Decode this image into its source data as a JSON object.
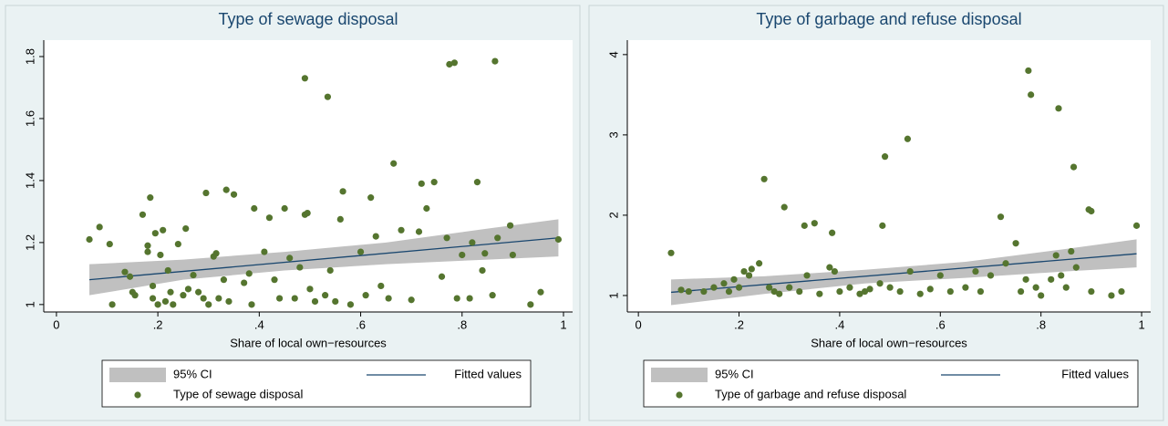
{
  "chart_data": [
    {
      "type": "scatter",
      "title": "Type of sewage disposal",
      "xlabel": "Share of local own−resources",
      "xlim": [
        -0.025,
        1.018
      ],
      "ylim": [
        0.976,
        1.853
      ],
      "xticks": [
        0,
        {
          "value": 0.2,
          "label": ".2"
        },
        {
          "value": 0.4,
          "label": ".4"
        },
        {
          "value": 0.6,
          "label": ".6"
        },
        {
          "value": 0.8,
          "label": ".8"
        },
        1
      ],
      "yticks": [
        1,
        1.2,
        1.4,
        1.6,
        1.8
      ],
      "series": [
        {
          "name": "95% CI",
          "color": "#c0c0c0",
          "x": [
            0.065,
            0.25,
            0.45,
            0.65,
            0.85,
            0.99
          ],
          "lower": [
            1.03,
            1.08,
            1.11,
            1.13,
            1.145,
            1.155
          ],
          "upper": [
            1.13,
            1.145,
            1.17,
            1.2,
            1.245,
            1.275
          ]
        },
        {
          "name": "Fitted values",
          "color": "#1a476f",
          "x": [
            0.065,
            0.99
          ],
          "values": [
            1.08,
            1.215
          ]
        },
        {
          "name": "Type of sewage disposal",
          "color": "#55752f",
          "x": [
            0.065,
            0.085,
            0.105,
            0.11,
            0.135,
            0.145,
            0.15,
            0.155,
            0.17,
            0.18,
            0.18,
            0.185,
            0.19,
            0.19,
            0.195,
            0.2,
            0.205,
            0.21,
            0.215,
            0.22,
            0.225,
            0.23,
            0.24,
            0.25,
            0.255,
            0.26,
            0.27,
            0.28,
            0.29,
            0.295,
            0.3,
            0.31,
            0.315,
            0.32,
            0.33,
            0.335,
            0.34,
            0.35,
            0.37,
            0.38,
            0.385,
            0.39,
            0.41,
            0.42,
            0.43,
            0.44,
            0.45,
            0.46,
            0.47,
            0.48,
            0.49,
            0.49,
            0.495,
            0.5,
            0.51,
            0.53,
            0.535,
            0.54,
            0.55,
            0.56,
            0.565,
            0.58,
            0.6,
            0.61,
            0.62,
            0.63,
            0.64,
            0.655,
            0.665,
            0.68,
            0.7,
            0.715,
            0.72,
            0.73,
            0.745,
            0.76,
            0.77,
            0.775,
            0.785,
            0.79,
            0.8,
            0.815,
            0.82,
            0.83,
            0.84,
            0.845,
            0.86,
            0.865,
            0.87,
            0.895,
            0.9,
            0.935,
            0.955,
            0.99
          ],
          "values": [
            1.21,
            1.25,
            1.195,
            1.0,
            1.105,
            1.09,
            1.04,
            1.03,
            1.29,
            1.17,
            1.19,
            1.345,
            1.06,
            1.02,
            1.23,
            1.0,
            1.16,
            1.24,
            1.01,
            1.11,
            1.04,
            1.0,
            1.195,
            1.03,
            1.245,
            1.05,
            1.095,
            1.04,
            1.02,
            1.36,
            1.0,
            1.155,
            1.165,
            1.02,
            1.08,
            1.37,
            1.01,
            1.355,
            1.07,
            1.1,
            1.0,
            1.31,
            1.17,
            1.28,
            1.08,
            1.02,
            1.31,
            1.15,
            1.02,
            1.12,
            1.73,
            1.29,
            1.295,
            1.05,
            1.01,
            1.03,
            1.67,
            1.11,
            1.01,
            1.275,
            1.365,
            1.0,
            1.17,
            1.03,
            1.345,
            1.22,
            1.06,
            1.02,
            1.455,
            1.24,
            1.015,
            1.235,
            1.39,
            1.31,
            1.395,
            1.09,
            1.215,
            1.775,
            1.78,
            1.02,
            1.16,
            1.02,
            1.2,
            1.395,
            1.11,
            1.165,
            1.03,
            1.785,
            1.215,
            1.255,
            1.16,
            1.0,
            1.04,
            1.21
          ]
        }
      ]
    },
    {
      "type": "scatter",
      "title": "Type of garbage and refuse disposal",
      "xlabel": "Share of local own−resources",
      "xlim": [
        -0.022,
        1.018
      ],
      "ylim": [
        0.795,
        4.18
      ],
      "xticks": [
        0,
        {
          "value": 0.2,
          "label": ".2"
        },
        {
          "value": 0.4,
          "label": ".4"
        },
        {
          "value": 0.6,
          "label": ".6"
        },
        {
          "value": 0.8,
          "label": ".8"
        },
        1
      ],
      "yticks": [
        1,
        2,
        3,
        4
      ],
      "series": [
        {
          "name": "95% CI",
          "color": "#c0c0c0",
          "x": [
            0.065,
            0.25,
            0.45,
            0.65,
            0.85,
            0.99
          ],
          "lower": [
            0.88,
            1.02,
            1.15,
            1.22,
            1.3,
            1.35
          ],
          "upper": [
            1.2,
            1.24,
            1.32,
            1.42,
            1.58,
            1.7
          ]
        },
        {
          "name": "Fitted values",
          "color": "#1a476f",
          "x": [
            0.065,
            0.99
          ],
          "values": [
            1.04,
            1.52
          ]
        },
        {
          "name": "Type of garbage and refuse disposal",
          "color": "#55752f",
          "x": [
            0.065,
            0.085,
            0.1,
            0.13,
            0.15,
            0.17,
            0.18,
            0.19,
            0.2,
            0.21,
            0.22,
            0.225,
            0.24,
            0.25,
            0.26,
            0.27,
            0.28,
            0.29,
            0.3,
            0.32,
            0.33,
            0.335,
            0.35,
            0.36,
            0.38,
            0.385,
            0.39,
            0.4,
            0.42,
            0.44,
            0.45,
            0.46,
            0.48,
            0.485,
            0.49,
            0.5,
            0.52,
            0.535,
            0.54,
            0.56,
            0.58,
            0.6,
            0.62,
            0.65,
            0.67,
            0.68,
            0.7,
            0.72,
            0.73,
            0.75,
            0.76,
            0.77,
            0.775,
            0.78,
            0.79,
            0.8,
            0.82,
            0.83,
            0.835,
            0.84,
            0.85,
            0.86,
            0.865,
            0.87,
            0.895,
            0.9,
            0.9,
            0.94,
            0.96,
            0.99
          ],
          "values": [
            1.53,
            1.07,
            1.05,
            1.05,
            1.1,
            1.15,
            1.05,
            1.2,
            1.1,
            1.3,
            1.25,
            1.33,
            1.4,
            2.45,
            1.1,
            1.05,
            1.02,
            2.1,
            1.1,
            1.05,
            1.87,
            1.25,
            1.9,
            1.02,
            1.35,
            1.78,
            1.3,
            1.05,
            1.1,
            1.02,
            1.05,
            1.08,
            1.15,
            1.87,
            2.73,
            1.1,
            1.05,
            2.95,
            1.3,
            1.02,
            1.08,
            1.25,
            1.05,
            1.1,
            1.3,
            1.05,
            1.25,
            1.98,
            1.4,
            1.65,
            1.05,
            1.2,
            3.8,
            3.5,
            1.1,
            1.0,
            1.2,
            1.5,
            3.33,
            1.25,
            1.1,
            1.55,
            2.6,
            1.35,
            2.07,
            2.05,
            1.05,
            1.0,
            1.05,
            1.87
          ]
        }
      ]
    }
  ]
}
